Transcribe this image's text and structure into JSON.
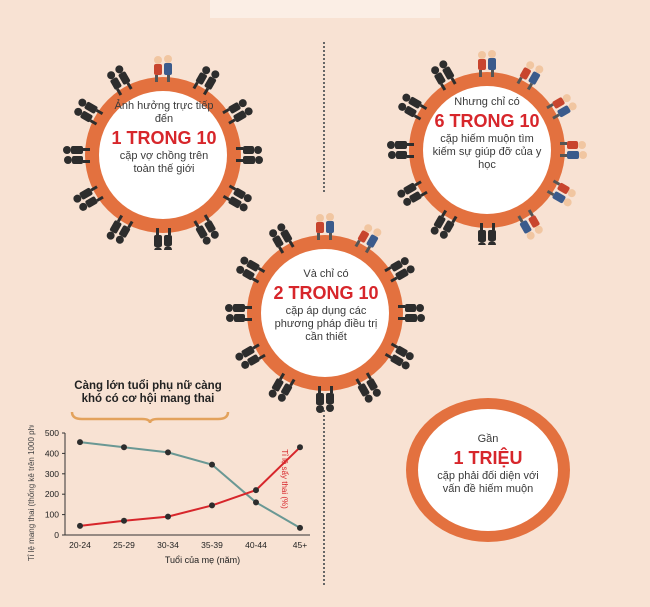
{
  "colors": {
    "ring_outer": "#e3713f",
    "ring_inner": "#ffffff",
    "accent_red": "#d7262b",
    "line_gray": "#6a9894",
    "line_red": "#d7262b",
    "silhouette": "#2d2d2d"
  },
  "ring1": {
    "lead": "Ảnh hưởng trực tiếp đến",
    "number": "1 TRONG 10",
    "desc": "cặp vợ chồng trên toàn thế giới"
  },
  "ring2": {
    "lead": "Nhưng chỉ có",
    "number": "6 TRONG 10",
    "desc": "cặp hiếm muộn tìm kiếm sự giúp đỡ của y học"
  },
  "ring3": {
    "lead": "Và chỉ có",
    "number": "2 TRONG 10",
    "desc": "cặp áp dụng các phương pháp điều trị cần thiết"
  },
  "million": {
    "lead": "Gần",
    "number": "1 TRIỆU",
    "desc": "cặp phải đối diện với vấn đề hiếm muộn"
  },
  "chart_data": {
    "type": "line",
    "title": "Càng lớn tuổi phụ nữ càng khó có cơ hội mang thai",
    "categories": [
      "20-24",
      "25-29",
      "30-34",
      "35-39",
      "40-44",
      "45+"
    ],
    "xlabel": "Tuổi của mẹ (năm)",
    "ylabel": "Tỉ lệ mang thai (thống kê trên 1000 phụ nữ)",
    "ylabel2": "Tỉ lệ sẩy thai (%)",
    "ylim": [
      0,
      500
    ],
    "yticks": [
      "0",
      "100",
      "200",
      "300",
      "400",
      "500"
    ],
    "series": [
      {
        "name": "Tỉ lệ mang thai",
        "color": "#6a9894",
        "values": [
          455,
          430,
          405,
          345,
          160,
          35
        ]
      },
      {
        "name": "Tỉ lệ sẩy thai",
        "color": "#d7262b",
        "values": [
          45,
          70,
          90,
          145,
          220,
          430
        ]
      }
    ]
  }
}
